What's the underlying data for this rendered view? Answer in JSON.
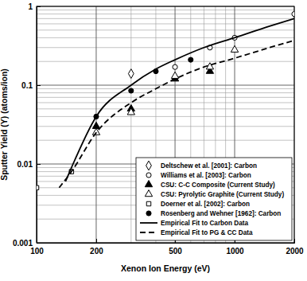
{
  "chart_data": {
    "type": "scatter",
    "x_label": "Xenon Ion Energy (eV)",
    "y_label": "Sputter Yield (Y) (atoms/ion)",
    "log": true,
    "grid": true,
    "legend": "lower right",
    "xlim": [
      100,
      2000
    ],
    "ylim": [
      0.001,
      1
    ],
    "xticks": [
      100,
      200,
      500,
      1000,
      2000
    ],
    "yticks": [
      0.001,
      0.01,
      0.1,
      1
    ],
    "series": [
      {
        "name": "Deltschew et al. [2001]: Carbon",
        "type": "scatter",
        "marker": "diamond-open",
        "color": "#000000",
        "x": [
          300
        ],
        "values": [
          0.14
        ]
      },
      {
        "name": "Williams et al. [2003]: Carbon",
        "type": "scatter",
        "marker": "circle-open",
        "color": "#000000",
        "x": [
          500,
          750,
          1000,
          2000
        ],
        "values": [
          0.17,
          0.3,
          0.4,
          0.8
        ]
      },
      {
        "name": "CSU: C-C Composite (Current Study)",
        "type": "scatter",
        "marker": "triangle-filled",
        "color": "#000000",
        "x": [
          200,
          300,
          500,
          750
        ],
        "values": [
          0.03,
          0.05,
          0.12,
          0.15
        ]
      },
      {
        "name": "CSU: Pyrolytic Graphite (Current Study)",
        "type": "scatter",
        "marker": "triangle-open",
        "color": "#000000",
        "x": [
          200,
          300,
          500,
          750,
          1000
        ],
        "values": [
          0.025,
          0.045,
          0.13,
          0.17,
          0.28
        ]
      },
      {
        "name": "Doerner et al. [2002]: Carbon",
        "type": "scatter",
        "marker": "square-open",
        "color": "#000000",
        "x": [
          100,
          150
        ],
        "values": [
          0.005,
          0.008
        ]
      },
      {
        "name": "Rosenberg and Wehner [1962]: Carbon",
        "type": "scatter",
        "marker": "circle-filled",
        "color": "#000000",
        "x": [
          200,
          300,
          400,
          600
        ],
        "values": [
          0.04,
          0.085,
          0.15,
          0.21
        ]
      },
      {
        "name": "Empirical Fit to Carbon Data",
        "type": "line",
        "line_style": "solid",
        "color": "#000000",
        "x": [
          140,
          150,
          200,
          300,
          400,
          500,
          700,
          1000,
          1500,
          2000
        ],
        "values": [
          0.006,
          0.009,
          0.04,
          0.1,
          0.16,
          0.21,
          0.3,
          0.4,
          0.56,
          0.7
        ]
      },
      {
        "name": "Empirical Fit to PG & CC Data",
        "type": "line",
        "line_style": "dashed",
        "color": "#000000",
        "x": [
          130,
          150,
          200,
          300,
          400,
          500,
          700,
          1000,
          1500,
          2000
        ],
        "values": [
          0.005,
          0.008,
          0.025,
          0.06,
          0.09,
          0.12,
          0.17,
          0.22,
          0.3,
          0.37
        ]
      }
    ]
  }
}
